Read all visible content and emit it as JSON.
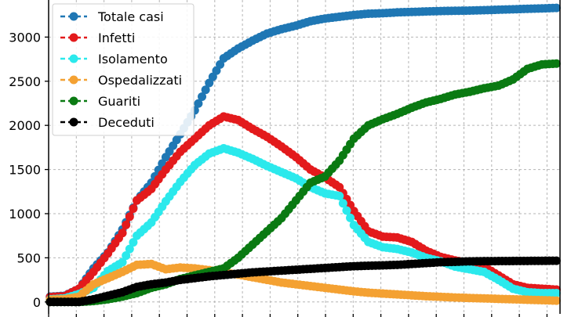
{
  "chart_data": {
    "type": "line",
    "title": "",
    "xlabel": "",
    "ylabel": "",
    "ylim": [
      -135,
      3420
    ],
    "y_ticks": [
      0,
      500,
      1000,
      1500,
      2000,
      2500,
      3000
    ],
    "y_tick_labels": [
      "0",
      "500",
      "1000",
      "1500",
      "2000",
      "2500",
      "3000"
    ],
    "x": [
      0,
      2,
      4,
      6,
      8,
      10,
      12,
      14,
      16,
      18,
      20,
      22,
      24,
      26,
      28,
      30,
      32,
      34,
      36,
      38,
      40,
      42,
      44,
      46,
      48,
      50,
      52,
      54,
      56,
      58,
      60,
      62,
      64,
      66,
      68,
      70
    ],
    "grid": true,
    "legend_position": "top-left",
    "series": [
      {
        "name": "Totale casi",
        "color": "#1f77b4",
        "values": [
          60,
          70,
          150,
          380,
          560,
          820,
          1150,
          1350,
          1640,
          1900,
          2170,
          2480,
          2760,
          2870,
          2960,
          3040,
          3090,
          3130,
          3180,
          3210,
          3230,
          3250,
          3265,
          3270,
          3280,
          3285,
          3290,
          3295,
          3298,
          3300,
          3305,
          3310,
          3315,
          3320,
          3325,
          3330
        ]
      },
      {
        "name": "Infetti",
        "color": "#e31a1c",
        "values": [
          55,
          65,
          150,
          340,
          550,
          780,
          1150,
          1280,
          1500,
          1700,
          1850,
          2000,
          2100,
          2060,
          1960,
          1870,
          1760,
          1640,
          1500,
          1410,
          1300,
          1030,
          800,
          740,
          730,
          680,
          580,
          510,
          470,
          440,
          400,
          300,
          200,
          160,
          150,
          140
        ]
      },
      {
        "name": "Isolamento",
        "color": "#2be9ec",
        "values": [
          30,
          40,
          90,
          160,
          350,
          450,
          750,
          900,
          1140,
          1360,
          1550,
          1680,
          1740,
          1690,
          1620,
          1540,
          1470,
          1400,
          1300,
          1230,
          1200,
          870,
          680,
          620,
          600,
          560,
          500,
          460,
          400,
          370,
          340,
          250,
          150,
          110,
          100,
          100
        ]
      },
      {
        "name": "Ospedalizzati",
        "color": "#f4a132",
        "values": [
          25,
          30,
          60,
          200,
          270,
          340,
          420,
          430,
          370,
          390,
          380,
          360,
          330,
          310,
          280,
          250,
          220,
          200,
          180,
          160,
          140,
          120,
          105,
          95,
          85,
          75,
          65,
          58,
          50,
          45,
          40,
          35,
          30,
          25,
          20,
          15
        ]
      },
      {
        "name": "Guariti",
        "color": "#0a7a12",
        "values": [
          0,
          0,
          0,
          10,
          30,
          60,
          100,
          160,
          200,
          260,
          300,
          340,
          380,
          500,
          650,
          800,
          950,
          1150,
          1350,
          1420,
          1600,
          1850,
          2000,
          2070,
          2130,
          2200,
          2260,
          2300,
          2350,
          2380,
          2420,
          2450,
          2520,
          2640,
          2690,
          2700
        ]
      },
      {
        "name": "Deceduti",
        "color": "#000000",
        "values": [
          0,
          0,
          0,
          30,
          70,
          110,
          170,
          200,
          220,
          250,
          270,
          290,
          305,
          320,
          335,
          345,
          355,
          365,
          375,
          385,
          395,
          405,
          410,
          415,
          420,
          430,
          440,
          450,
          455,
          460,
          462,
          463,
          464,
          465,
          466,
          467
        ]
      }
    ]
  }
}
